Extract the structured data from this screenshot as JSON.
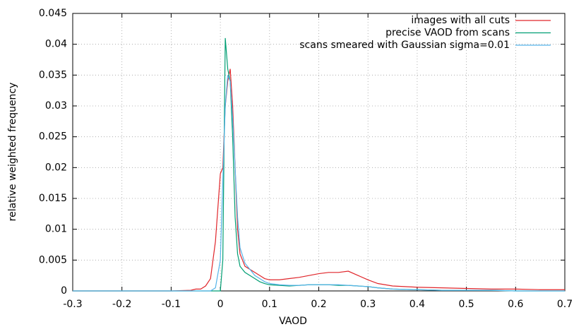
{
  "chart_data": {
    "type": "line",
    "xlabel": "VAOD",
    "ylabel": "relative weighted frequency",
    "x": [
      -0.3,
      -0.2,
      -0.1,
      -0.06,
      -0.05,
      -0.04,
      -0.03,
      -0.02,
      -0.01,
      0,
      0.005,
      0.01,
      0.015,
      0.02,
      0.025,
      0.03,
      0.035,
      0.04,
      0.05,
      0.06,
      0.07,
      0.08,
      0.09,
      0.1,
      0.12,
      0.14,
      0.16,
      0.18,
      0.2,
      0.22,
      0.24,
      0.26,
      0.28,
      0.3,
      0.32,
      0.35,
      0.4,
      0.45,
      0.5,
      0.55,
      0.6,
      0.65,
      0.7
    ],
    "series": [
      {
        "name": "images with all cuts",
        "color": "#e0262b",
        "values": [
          0,
          0,
          0,
          0.0001,
          0.0003,
          0.0003,
          0.0008,
          0.002,
          0.008,
          0.019,
          0.02,
          0.03,
          0.034,
          0.036,
          0.03,
          0.02,
          0.01,
          0.006,
          0.004,
          0.0035,
          0.003,
          0.0025,
          0.002,
          0.0018,
          0.0018,
          0.002,
          0.0022,
          0.0025,
          0.0028,
          0.003,
          0.003,
          0.0032,
          0.0025,
          0.0018,
          0.0012,
          0.0008,
          0.0006,
          0.0005,
          0.0004,
          0.0003,
          0.0003,
          0.0002,
          0.0002
        ]
      },
      {
        "name": "precise VAOD from scans",
        "color": "#009e73",
        "values": [
          0,
          0,
          0,
          0,
          0,
          0,
          0,
          0,
          0,
          0,
          0.005,
          0.041,
          0.036,
          0.034,
          0.025,
          0.012,
          0.006,
          0.004,
          0.003,
          0.0025,
          0.002,
          0.0015,
          0.0012,
          0.001,
          0.0009,
          0.0008,
          0.0009,
          0.001,
          0.001,
          0.001,
          0.0009,
          0.0009,
          0.0008,
          0.0007,
          0.0005,
          0.0003,
          0.0002,
          0.0001,
          0.0001,
          0.0001,
          0,
          0,
          0
        ]
      },
      {
        "name": "scans smeared with Gaussian sigma=0.01",
        "color": "#56b4e9",
        "values": [
          0,
          0,
          0,
          0,
          0,
          0,
          0,
          0,
          0.0005,
          0.005,
          0.018,
          0.03,
          0.035,
          0.034,
          0.028,
          0.02,
          0.012,
          0.007,
          0.0045,
          0.0035,
          0.0025,
          0.002,
          0.0015,
          0.0012,
          0.001,
          0.0009,
          0.0009,
          0.001,
          0.001,
          0.001,
          0.001,
          0.0009,
          0.0008,
          0.0007,
          0.0005,
          0.0003,
          0.0002,
          0.0001,
          0.0001,
          0.0001,
          0,
          0,
          0
        ]
      }
    ],
    "xlim": [
      -0.3,
      0.7
    ],
    "xticks": [
      -0.3,
      -0.2,
      -0.1,
      0,
      0.1,
      0.2,
      0.3,
      0.4,
      0.5,
      0.6,
      0.7
    ],
    "ylim": [
      0,
      0.045
    ],
    "yticks": [
      0,
      0.005,
      0.01,
      0.015,
      0.02,
      0.025,
      0.03,
      0.035,
      0.04,
      0.045
    ],
    "grid": true,
    "legend": "top-right"
  }
}
